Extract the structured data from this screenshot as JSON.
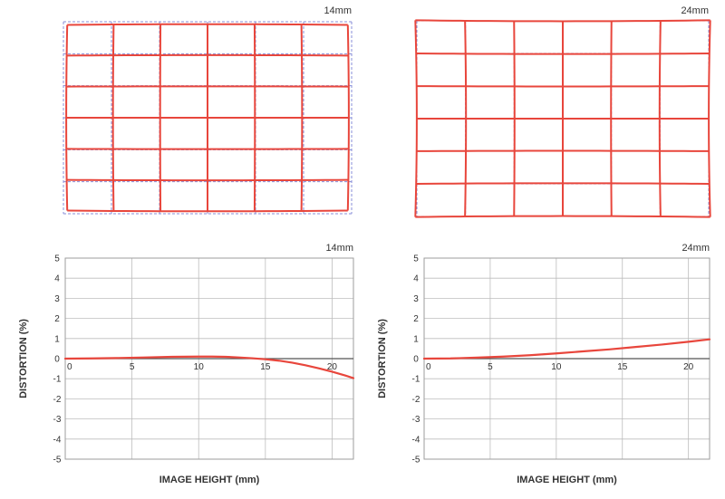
{
  "colors": {
    "curve": "#e8463c",
    "grid_ideal": "#8a8fd8",
    "axis_grid": "#bdbdbd",
    "frame": "#9e9e9e",
    "text": "#333333"
  },
  "chart_data": [
    {
      "type": "grid-distortion",
      "focal_label": "14mm",
      "distortion_type": "barrel",
      "rows": 6,
      "cols": 6
    },
    {
      "type": "grid-distortion",
      "focal_label": "24mm",
      "distortion_type": "pincushion",
      "rows": 6,
      "cols": 6
    },
    {
      "type": "line",
      "focal_label": "14mm",
      "xlabel": "IMAGE HEIGHT (mm)",
      "ylabel": "DISTORTION (%)",
      "xlim": [
        0,
        21.6
      ],
      "ylim": [
        -5,
        5
      ],
      "x_ticks": [
        0,
        5,
        10,
        15,
        20
      ],
      "y_ticks": [
        5,
        4,
        3,
        2,
        1,
        0,
        -1,
        -2,
        -3,
        -4,
        -5
      ],
      "grid": true,
      "series": [
        {
          "x": [
            0,
            2,
            4,
            6,
            8,
            10,
            11,
            12,
            13,
            14,
            15,
            16,
            17,
            18,
            19,
            20,
            21,
            21.6
          ],
          "y": [
            0,
            0.01,
            0.03,
            0.06,
            0.09,
            0.1,
            0.1,
            0.09,
            0.06,
            0.02,
            -0.03,
            -0.1,
            -0.2,
            -0.33,
            -0.48,
            -0.65,
            -0.84,
            -0.97
          ]
        }
      ]
    },
    {
      "type": "line",
      "focal_label": "24mm",
      "xlabel": "IMAGE HEIGHT (mm)",
      "ylabel": "DISTORTION (%)",
      "xlim": [
        0,
        21.6
      ],
      "ylim": [
        -5,
        5
      ],
      "x_ticks": [
        0,
        5,
        10,
        15,
        20
      ],
      "y_ticks": [
        5,
        4,
        3,
        2,
        1,
        0,
        -1,
        -2,
        -3,
        -4,
        -5
      ],
      "grid": true,
      "series": [
        {
          "x": [
            0,
            2,
            4,
            6,
            8,
            10,
            12,
            14,
            16,
            18,
            20,
            21.6
          ],
          "y": [
            0,
            0.01,
            0.05,
            0.1,
            0.17,
            0.26,
            0.36,
            0.46,
            0.58,
            0.7,
            0.84,
            0.96
          ]
        }
      ]
    }
  ]
}
